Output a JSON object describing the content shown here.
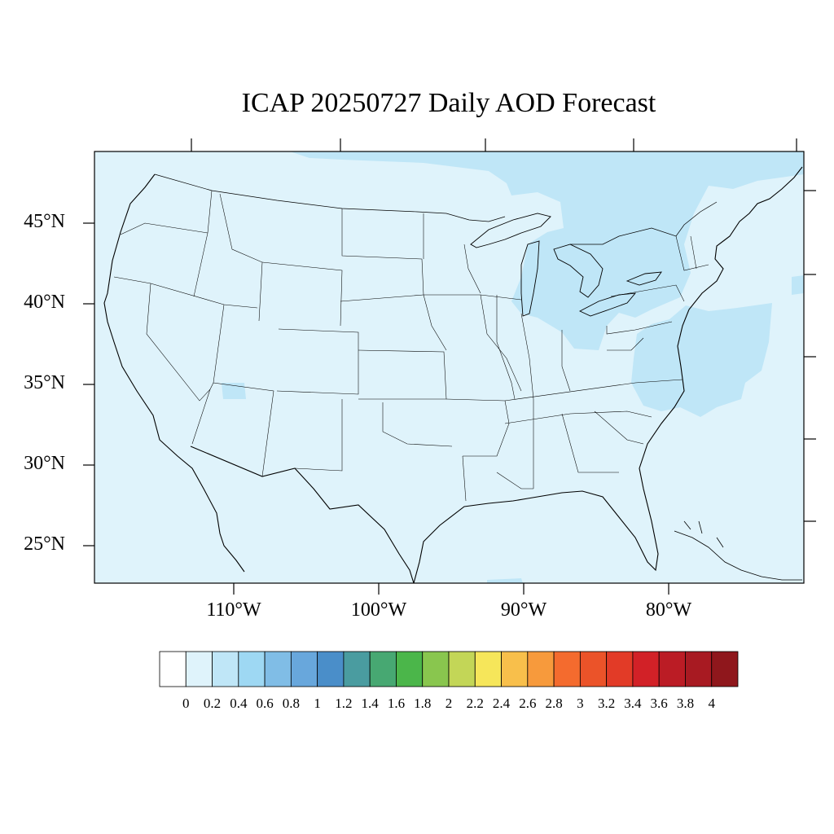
{
  "title": "ICAP 20250727 Daily AOD Forecast",
  "map": {
    "region": "Contiguous United States",
    "projection": "lambert-conformal",
    "background_color": "#dff3fb",
    "lat_ticks": [
      {
        "value": 45,
        "label": "45°N"
      },
      {
        "value": 40,
        "label": "40°N"
      },
      {
        "value": 35,
        "label": "35°N"
      },
      {
        "value": 30,
        "label": "30°N"
      },
      {
        "value": 25,
        "label": "25°N"
      }
    ],
    "lon_ticks": [
      {
        "value": -110,
        "label": "110°W"
      },
      {
        "value": -100,
        "label": "100°W"
      },
      {
        "value": -90,
        "label": "90°W"
      },
      {
        "value": -80,
        "label": "80°W"
      }
    ],
    "aod_regions": [
      {
        "name": "northeast-great-lakes",
        "aod_range": [
          0.2,
          0.4
        ],
        "color": "#bfe6f7"
      },
      {
        "name": "mid-atlantic-offshore",
        "aod_range": [
          0.2,
          0.4
        ],
        "color": "#bfe6f7"
      },
      {
        "name": "arizona-patch",
        "aod_range": [
          0.2,
          0.4
        ],
        "color": "#bfe6f7"
      },
      {
        "name": "northern-border-strip",
        "aod_range": [
          0.2,
          0.4
        ],
        "color": "#bfe6f7"
      }
    ]
  },
  "colorbar": {
    "labels": [
      "0",
      "0.2",
      "0.4",
      "0.6",
      "0.8",
      "1",
      "1.2",
      "1.4",
      "1.6",
      "1.8",
      "2",
      "2.2",
      "2.4",
      "2.6",
      "2.8",
      "3",
      "3.2",
      "3.4",
      "3.6",
      "3.8",
      "4"
    ],
    "colors": [
      "#ffffff",
      "#dff3fb",
      "#bfe6f7",
      "#9ed8f3",
      "#80bde6",
      "#68a7dc",
      "#4a8ec9",
      "#4a9ca0",
      "#47a872",
      "#4bb64a",
      "#89c64e",
      "#c3d657",
      "#f6e65a",
      "#f8bf4b",
      "#f79a3c",
      "#f46b2e",
      "#eb5329",
      "#e23b27",
      "#d22127",
      "#bb1c25",
      "#a81a22",
      "#8f171c"
    ]
  }
}
